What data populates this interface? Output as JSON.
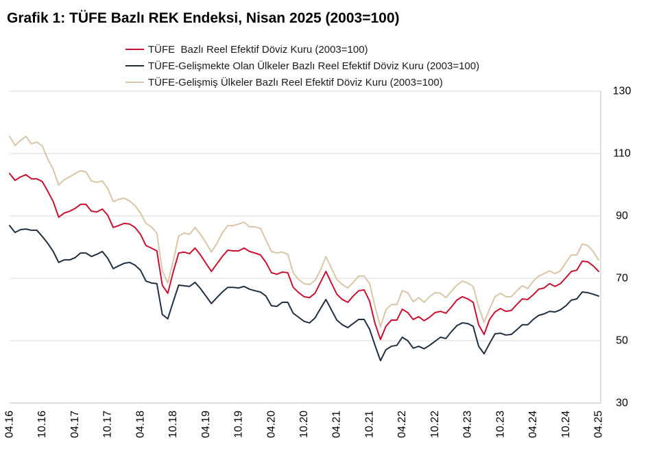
{
  "chart_data": {
    "type": "line",
    "title": "Grafik 1: TÜFE Bazlı REK Endeksi, Nisan 2025 (2003=100)",
    "x_tick_labels": [
      "04.16",
      "10.16",
      "04.17",
      "10.17",
      "04.18",
      "10.18",
      "04.19",
      "10.19",
      "04.20",
      "10.20",
      "04.21",
      "10.21",
      "04.22",
      "10.22",
      "04.23",
      "10.23",
      "04.24",
      "10.24",
      "04.25"
    ],
    "y_ticks": [
      30,
      50,
      70,
      90,
      110,
      130
    ],
    "ylim": [
      30,
      130
    ],
    "y_axis_side": "right",
    "grid": "horizontal",
    "legend_position": "top",
    "series": [
      {
        "name": "TÜFE  Bazlı Reel Efektif Döviz Kuru (2003=100)",
        "color": "#c8102e",
        "values": [
          103.6,
          101.4,
          102.5,
          103.2,
          101.9,
          101.9,
          101.0,
          97.9,
          94.6,
          89.6,
          90.9,
          91.5,
          92.4,
          93.7,
          93.7,
          91.5,
          91.3,
          92.2,
          90.2,
          86.3,
          86.9,
          87.6,
          87.4,
          86.3,
          84.1,
          80.5,
          79.7,
          78.8,
          67.8,
          65.2,
          72.0,
          78.1,
          78.4,
          77.9,
          79.7,
          77.5,
          74.8,
          72.2,
          74.6,
          77.0,
          79.0,
          78.8,
          78.8,
          79.7,
          78.6,
          78.1,
          77.5,
          75.1,
          71.8,
          71.3,
          72.0,
          71.8,
          67.1,
          65.4,
          64.1,
          63.8,
          65.2,
          68.7,
          72.2,
          68.5,
          64.9,
          63.2,
          62.3,
          64.3,
          66.0,
          66.3,
          62.7,
          55.5,
          50.4,
          54.6,
          56.6,
          56.6,
          60.1,
          59.0,
          56.8,
          57.7,
          56.4,
          57.5,
          59.0,
          59.4,
          58.8,
          60.8,
          63.0,
          64.1,
          63.4,
          62.3,
          55.1,
          52.0,
          56.8,
          59.2,
          60.3,
          59.4,
          59.7,
          61.6,
          63.4,
          63.2,
          64.7,
          66.5,
          66.9,
          68.3,
          67.4,
          68.3,
          70.2,
          72.2,
          72.6,
          75.5,
          75.3,
          74.0,
          72.2
        ]
      },
      {
        "name": "TÜFE-Gelişmekte Olan Ülkeler Bazlı Reel Efektif Döviz Kuru (2003=100)",
        "color": "#1f2e3f",
        "values": [
          86.9,
          84.7,
          85.6,
          85.8,
          85.4,
          85.4,
          83.4,
          81.2,
          78.6,
          75.1,
          75.9,
          75.9,
          76.6,
          78.1,
          78.1,
          77.0,
          77.7,
          78.6,
          76.4,
          73.1,
          74.0,
          74.8,
          75.1,
          74.2,
          72.6,
          69.1,
          68.5,
          68.3,
          58.4,
          57.0,
          62.5,
          67.8,
          67.6,
          67.4,
          68.7,
          66.7,
          64.3,
          61.9,
          63.8,
          65.6,
          67.1,
          67.1,
          66.9,
          67.4,
          66.5,
          66.0,
          65.6,
          64.3,
          61.2,
          61.0,
          62.3,
          62.3,
          58.8,
          57.5,
          56.2,
          55.7,
          57.3,
          60.3,
          63.2,
          59.9,
          56.6,
          55.1,
          54.2,
          55.5,
          56.8,
          56.8,
          53.7,
          48.5,
          43.6,
          47.1,
          48.2,
          48.5,
          51.1,
          50.0,
          47.6,
          48.2,
          47.4,
          48.5,
          49.8,
          51.1,
          50.7,
          52.9,
          54.8,
          55.7,
          55.5,
          54.6,
          48.2,
          45.8,
          49.1,
          52.2,
          52.4,
          51.8,
          52.0,
          53.5,
          55.1,
          55.1,
          56.8,
          58.1,
          58.6,
          59.4,
          59.2,
          59.9,
          61.2,
          63.0,
          63.4,
          65.6,
          65.4,
          64.9,
          64.3
        ]
      },
      {
        "name": "TÜFE-Gelişmiş Ülkeler Bazlı Reel Efektif Döviz Kuru (2003=100)",
        "color": "#d8c6a6",
        "values": [
          115.5,
          112.6,
          114.2,
          115.5,
          113.1,
          113.7,
          112.4,
          108.2,
          104.9,
          99.9,
          101.6,
          102.5,
          103.6,
          104.5,
          104.1,
          101.2,
          100.8,
          101.2,
          98.8,
          94.6,
          95.3,
          95.7,
          94.8,
          93.3,
          90.9,
          87.6,
          86.5,
          84.5,
          72.4,
          68.5,
          75.5,
          83.6,
          84.5,
          84.1,
          86.3,
          84.1,
          81.4,
          78.4,
          81.2,
          84.5,
          86.9,
          86.9,
          87.4,
          88.0,
          86.5,
          86.5,
          86.0,
          82.3,
          78.6,
          78.1,
          78.4,
          77.7,
          71.8,
          69.6,
          68.3,
          68.0,
          69.3,
          72.6,
          77.0,
          73.3,
          69.6,
          68.0,
          66.9,
          68.7,
          70.7,
          70.7,
          68.3,
          61.0,
          54.4,
          59.9,
          61.6,
          61.6,
          66.0,
          65.4,
          62.5,
          63.8,
          62.3,
          64.1,
          65.4,
          65.2,
          63.8,
          65.8,
          67.8,
          69.1,
          68.5,
          67.4,
          60.8,
          55.9,
          60.1,
          64.1,
          65.2,
          64.1,
          64.1,
          66.0,
          67.6,
          66.7,
          69.1,
          70.7,
          71.5,
          72.4,
          71.5,
          72.4,
          75.1,
          77.5,
          77.5,
          81.0,
          80.5,
          78.6,
          75.9
        ]
      }
    ]
  }
}
